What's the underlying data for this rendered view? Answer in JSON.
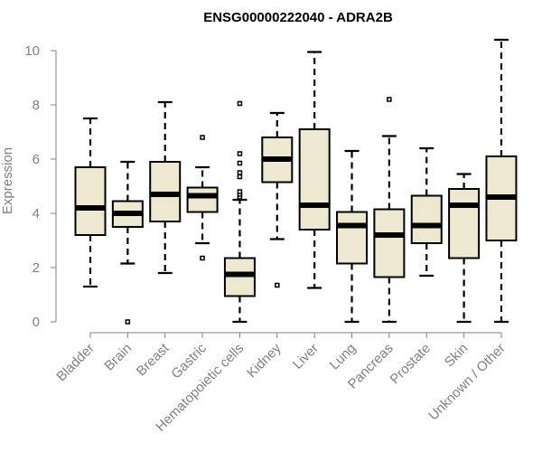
{
  "chart_data": {
    "type": "boxplot",
    "title": "ENSG00000222040 - ADRA2B",
    "xlabel": "",
    "ylabel": "Expression",
    "ylim": [
      0,
      10
    ],
    "yticks": [
      0,
      2,
      4,
      6,
      8,
      10
    ],
    "colors": {
      "box_fill": "#EEE8D0",
      "stroke": "#000000",
      "axis": "#808080"
    },
    "categories": [
      "Bladder",
      "Brain",
      "Breast",
      "Gastric",
      "Hematopoietic cells",
      "Kidney",
      "Liver",
      "Lung",
      "Pancreas",
      "Prostate",
      "Skin",
      "Unknown / Other"
    ],
    "boxes": [
      {
        "min": 1.3,
        "q1": 3.2,
        "median": 4.2,
        "q3": 5.7,
        "max": 7.5,
        "outliers": []
      },
      {
        "min": 2.15,
        "q1": 3.5,
        "median": 4.0,
        "q3": 4.45,
        "max": 5.9,
        "outliers": [
          0.0
        ]
      },
      {
        "min": 1.8,
        "q1": 3.7,
        "median": 4.7,
        "q3": 5.9,
        "max": 8.1,
        "outliers": []
      },
      {
        "min": 2.9,
        "q1": 4.05,
        "median": 4.65,
        "q3": 4.95,
        "max": 5.7,
        "outliers": [
          2.35,
          6.8
        ]
      },
      {
        "min": 0.0,
        "q1": 0.95,
        "median": 1.75,
        "q3": 2.35,
        "max": 4.5,
        "outliers": [
          4.6,
          4.7,
          4.8,
          5.35,
          5.5,
          5.85,
          6.2,
          8.05
        ]
      },
      {
        "min": 3.05,
        "q1": 5.15,
        "median": 6.0,
        "q3": 6.8,
        "max": 7.7,
        "outliers": [
          1.35
        ]
      },
      {
        "min": 1.25,
        "q1": 3.4,
        "median": 4.3,
        "q3": 7.1,
        "max": 9.95,
        "outliers": []
      },
      {
        "min": 0.0,
        "q1": 2.15,
        "median": 3.55,
        "q3": 4.05,
        "max": 6.3,
        "outliers": []
      },
      {
        "min": 0.0,
        "q1": 1.65,
        "median": 3.2,
        "q3": 4.15,
        "max": 6.85,
        "outliers": [
          8.2
        ]
      },
      {
        "min": 1.7,
        "q1": 2.9,
        "median": 3.55,
        "q3": 4.65,
        "max": 6.4,
        "outliers": []
      },
      {
        "min": 0.0,
        "q1": 2.35,
        "median": 4.3,
        "q3": 4.9,
        "max": 5.45,
        "outliers": []
      },
      {
        "min": 0.0,
        "q1": 3.0,
        "median": 4.6,
        "q3": 6.1,
        "max": 10.4,
        "outliers": []
      }
    ]
  }
}
